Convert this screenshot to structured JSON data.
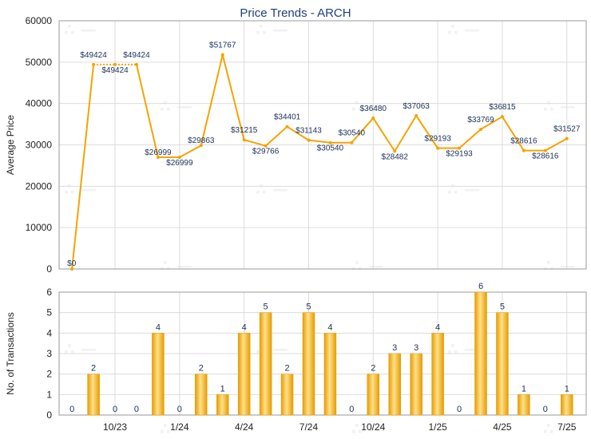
{
  "title": "Price Trends - ARCH",
  "colors": {
    "line": "#f5a300",
    "bar_light": "#ffe08a",
    "bar_dark": "#e79c00",
    "label": "#1a2f5a"
  },
  "chart_data": [
    {
      "type": "line",
      "ylabel": "Average Price",
      "ylim": [
        0,
        60000
      ],
      "yticks": [
        0,
        10000,
        20000,
        30000,
        40000,
        50000,
        60000
      ],
      "grid": true,
      "series": [
        {
          "values": [
            0,
            49424,
            49424,
            49424,
            26999,
            26999,
            29863,
            51767,
            31215,
            29766,
            34401,
            31143,
            30540,
            30540,
            36480,
            28482,
            37063,
            29193,
            29193,
            33769,
            36815,
            28616,
            28616,
            31527
          ],
          "labels": [
            "$0",
            "$49424",
            "$49424",
            "$49424",
            "$26999",
            "$26999",
            "$29863",
            "$51767",
            "$31215",
            "$29766",
            "$34401",
            "$31143",
            "$30540",
            "$30540",
            "$36480",
            "$28482",
            "$37063",
            "$29193",
            "$29193",
            "$33769",
            "$36815",
            "$28616",
            "$28616",
            "$31527"
          ],
          "dotted_segments": [
            [
              1,
              2
            ],
            [
              2,
              3
            ]
          ]
        }
      ]
    },
    {
      "type": "bar",
      "ylabel": "No. of Transactions",
      "ylim": [
        0,
        6
      ],
      "yticks": [
        0,
        1,
        2,
        3,
        4,
        5,
        6
      ],
      "grid": true,
      "xticks": [
        {
          "index": 2,
          "label": "10/23"
        },
        {
          "index": 5,
          "label": "1/24"
        },
        {
          "index": 8,
          "label": "4/24"
        },
        {
          "index": 11,
          "label": "7/24"
        },
        {
          "index": 14,
          "label": "10/24"
        },
        {
          "index": 17,
          "label": "1/25"
        },
        {
          "index": 20,
          "label": "4/25"
        },
        {
          "index": 23,
          "label": "7/25"
        }
      ],
      "values": [
        0,
        2,
        0,
        0,
        4,
        0,
        2,
        1,
        4,
        5,
        2,
        5,
        4,
        0,
        2,
        3,
        3,
        4,
        0,
        6,
        5,
        1,
        0,
        1
      ]
    }
  ]
}
